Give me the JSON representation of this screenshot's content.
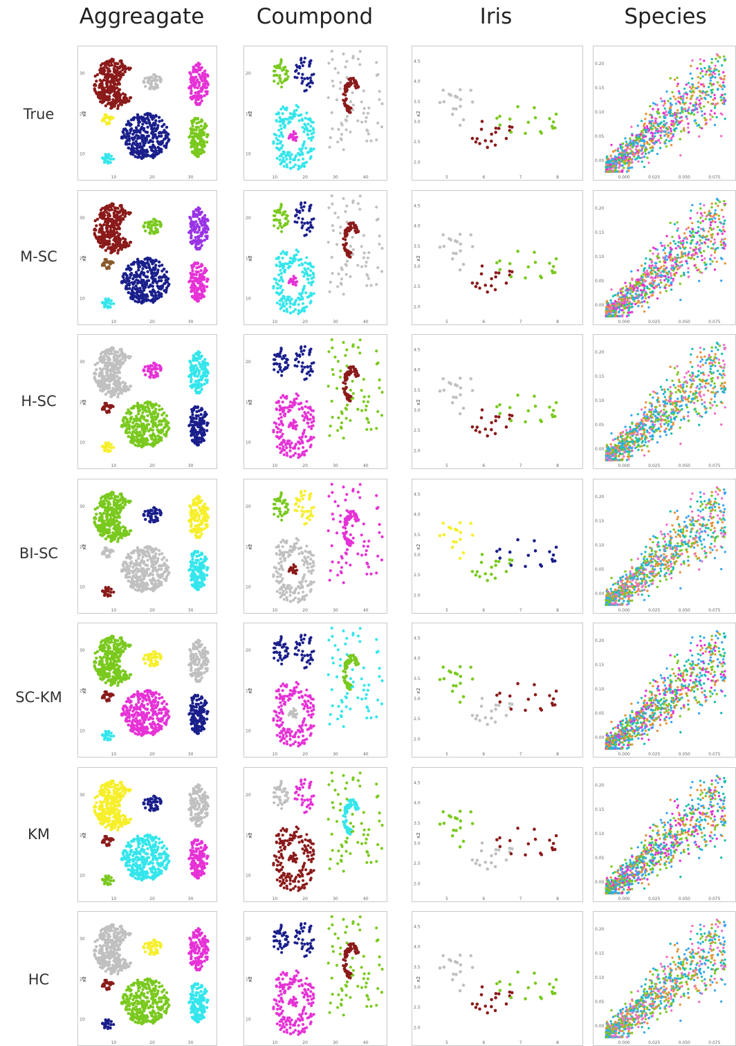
{
  "figure": {
    "column_titles": [
      "Aggreagate",
      "Coumpond",
      "Iris",
      "Species"
    ],
    "row_labels": [
      "True",
      "M-SC",
      "H-SC",
      "BI-SC",
      "SC-KM",
      "KM",
      "HC"
    ],
    "y_axis_label": "x2"
  },
  "palette": {
    "maroon": "#8b1a1a",
    "gray": "#c0c0c0",
    "magenta": "#e632d6",
    "yellow": "#f6ef2a",
    "navy": "#1a1f8c",
    "green": "#7ac91e",
    "cyan": "#34e6ec",
    "purple": "#9a34e6",
    "brown": "#8a5a2b",
    "orange": "#e8923a",
    "teal": "#1abfb0",
    "blue": "#38a8f2",
    "pink": "#ef6fc8"
  },
  "chart_data": [
    {
      "dataset": "Aggreagate",
      "type": "scatter",
      "ylabel": "x2",
      "xticks": [
        "10",
        "20",
        "30"
      ],
      "yticks": [
        "10",
        "20",
        "30"
      ],
      "clusters": [
        {
          "id": "A",
          "shape": "crescent",
          "cx": 8,
          "cy": 22,
          "rx": 6,
          "ry": 6
        },
        {
          "id": "B",
          "shape": "ellipse",
          "cx": 19,
          "cy": 22.5,
          "rx": 2.8,
          "ry": 1.8
        },
        {
          "id": "C",
          "shape": "ellipse",
          "cx": 32.5,
          "cy": 22,
          "rx": 3,
          "ry": 5
        },
        {
          "id": "D",
          "shape": "ellipse",
          "cx": 6,
          "cy": 13.5,
          "rx": 2,
          "ry": 1.2
        },
        {
          "id": "E",
          "shape": "ellipse",
          "cx": 17,
          "cy": 9.5,
          "rx": 7,
          "ry": 5.5
        },
        {
          "id": "F",
          "shape": "ellipse",
          "cx": 32.5,
          "cy": 9.5,
          "rx": 3,
          "ry": 5
        },
        {
          "id": "G",
          "shape": "ellipse",
          "cx": 6,
          "cy": 4,
          "rx": 1.8,
          "ry": 1.4
        }
      ],
      "assignments": {
        "True": {
          "A": "maroon",
          "B": "gray",
          "C": "magenta",
          "D": "yellow",
          "E": "navy",
          "F": "green",
          "G": "cyan"
        },
        "M-SC": {
          "A": "maroon",
          "B": "green",
          "C": "purple",
          "D": "brown",
          "E": "navy",
          "F": "magenta",
          "G": "cyan"
        },
        "H-SC": {
          "A": "gray",
          "B": "magenta",
          "C": "cyan",
          "D": "maroon",
          "E": "green",
          "F": "navy",
          "G": "yellow"
        },
        "BI-SC": {
          "A": "green",
          "B": "navy",
          "C": "yellow",
          "D": "gray",
          "E": "gray",
          "F": "cyan",
          "G": "maroon"
        },
        "SC-KM": {
          "A": "green",
          "B": "yellow",
          "C": "gray",
          "D": "maroon",
          "E": "magenta",
          "F": "navy",
          "G": "cyan"
        },
        "KM": {
          "A": "yellow",
          "B": "navy",
          "C": "gray",
          "D": "maroon",
          "E": "cyan",
          "F": "magenta",
          "G": "green"
        },
        "HC": {
          "A": "gray",
          "B": "yellow",
          "C": "magenta",
          "D": "maroon",
          "E": "green",
          "F": "cyan",
          "G": "navy"
        }
      }
    },
    {
      "dataset": "Coumpond",
      "type": "scatter",
      "ylabel": "x2",
      "xticks": [
        "10",
        "20",
        "30",
        "40"
      ],
      "yticks": [
        "10",
        "15",
        "20"
      ],
      "clusters": [
        {
          "id": "A",
          "shape": "grid-blob",
          "cx": 11,
          "cy": 21,
          "rx": 3,
          "ry": 2.5
        },
        {
          "id": "B",
          "shape": "grid-blob",
          "cx": 19,
          "cy": 21,
          "rx": 3,
          "ry": 3.2
        },
        {
          "id": "C",
          "shape": "sparse-field",
          "cx": 35,
          "cy": 16,
          "rx": 8.5,
          "ry": 9
        },
        {
          "id": "D",
          "shape": "hook",
          "cx": 34,
          "cy": 18,
          "rx": 4,
          "ry": 4
        },
        {
          "id": "E",
          "shape": "ring",
          "cx": 15.5,
          "cy": 10,
          "rx": 7,
          "ry": 6
        },
        {
          "id": "F",
          "shape": "ellipse",
          "cx": 15.5,
          "cy": 10,
          "rx": 1.4,
          "ry": 1.1
        }
      ],
      "assignments": {
        "True": {
          "A": "green",
          "B": "navy",
          "C": "gray",
          "D": "maroon",
          "E": "cyan",
          "F": "magenta"
        },
        "M-SC": {
          "A": "green",
          "B": "navy",
          "C": "gray",
          "D": "maroon",
          "E": "cyan",
          "F": "magenta"
        },
        "H-SC": {
          "A": "navy",
          "B": "navy",
          "C": "green",
          "D": "maroon",
          "E": "magenta",
          "F": "magenta"
        },
        "BI-SC": {
          "A": "green",
          "B": "yellow",
          "C": "magenta",
          "D": "magenta",
          "E": "gray",
          "F": "maroon"
        },
        "SC-KM": {
          "A": "navy",
          "B": "navy",
          "C": "cyan",
          "D": "green",
          "E": "magenta",
          "F": "gray"
        },
        "KM": {
          "A": "gray",
          "B": "magenta",
          "C": "green",
          "D": "cyan",
          "E": "maroon",
          "F": "maroon"
        },
        "HC": {
          "A": "navy",
          "B": "navy",
          "C": "green",
          "D": "maroon",
          "E": "magenta",
          "F": "magenta"
        }
      }
    },
    {
      "dataset": "Iris",
      "type": "scatter",
      "ylabel": "x2",
      "xticks": [
        "5",
        "6",
        "7",
        "8"
      ],
      "yticks": [
        "2.0",
        "2.5",
        "3.0",
        "3.5",
        "4.0",
        "4.5"
      ],
      "clusters": [
        {
          "id": "A",
          "shape": "ellipse",
          "cx": 5.0,
          "cy": 3.4,
          "rx": 0.6,
          "ry": 0.5
        },
        {
          "id": "B",
          "shape": "ellipse",
          "cx": 5.9,
          "cy": 2.75,
          "rx": 0.55,
          "ry": 0.35
        },
        {
          "id": "C",
          "shape": "ellipse",
          "cx": 6.8,
          "cy": 3.05,
          "rx": 0.8,
          "ry": 0.38
        }
      ],
      "assignments": {
        "True": {
          "A": "gray",
          "B": "maroon",
          "C": "green"
        },
        "M-SC": {
          "A": "gray",
          "B": "maroon",
          "C": "green"
        },
        "H-SC": {
          "A": "gray",
          "B": "maroon",
          "C": "green"
        },
        "BI-SC": {
          "A": "yellow",
          "B": "green",
          "C": "navy"
        },
        "SC-KM": {
          "A": "green",
          "B": "gray",
          "C": "maroon"
        },
        "KM": {
          "A": "green",
          "B": "gray",
          "C": "maroon"
        },
        "HC": {
          "A": "gray",
          "B": "maroon",
          "C": "green"
        }
      }
    },
    {
      "dataset": "Species",
      "type": "scatter",
      "xticks": [
        "0.000",
        "0.025",
        "0.050",
        "0.075"
      ],
      "yticks": [
        "0.00",
        "0.05",
        "0.10",
        "0.15",
        "0.20"
      ],
      "assignments": {
        "True": [
          "teal",
          "green",
          "orange",
          "magenta",
          "blue",
          "pink"
        ],
        "M-SC": [
          "pink",
          "magenta",
          "blue",
          "orange",
          "green",
          "teal"
        ],
        "H-SC": [
          "blue",
          "teal",
          "green",
          "pink",
          "orange"
        ],
        "BI-SC": [
          "orange",
          "blue",
          "teal",
          "green",
          "pink"
        ],
        "SC-KM": [
          "magenta",
          "orange",
          "blue",
          "green",
          "teal"
        ],
        "KM": [
          "blue",
          "magenta",
          "teal",
          "orange",
          "green"
        ],
        "HC": [
          "blue",
          "teal",
          "green",
          "pink",
          "orange"
        ]
      }
    }
  ]
}
